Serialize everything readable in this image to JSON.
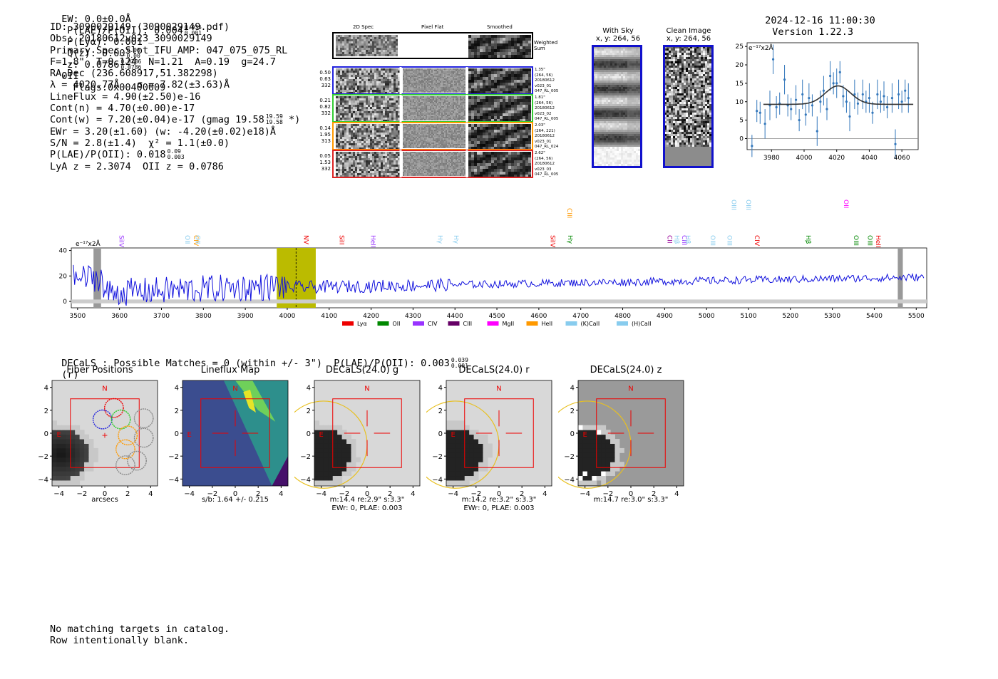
{
  "header": {
    "ew": "EW: 0.0±0.0Å",
    "plae_label": "P(LAE)/P(OII): 0.004",
    "plae_hi": "0.035",
    "plae_lo": "0.001",
    "plya": "P(Lyα): 0.001",
    "qz_label": "Q(z): 0.00",
    "qz_hi": "0.00",
    "qz_lo": "0.00",
    "z_label": "z: 0.0786",
    "z_hi": "0.0786",
    "z_lo": "0.0786",
    "z_line": "OII",
    "flags": "Flags:0x00400009",
    "timestamp": "2024-12-16 11:00:30",
    "version": "Version 1.22.3"
  },
  "info": {
    "id": "ID: 3090029149 (3090029149.pdf)",
    "obs": "Obs: 20180612v023_3090029149",
    "primary": "Primary Spec_Slot_IFU_AMP: 047_075_075_RL",
    "params": "F=1.8\"  T=0.124  N=1.21  A=0.19  g=24.7",
    "radec": "RA,Dec (236.608917,51.382298)",
    "lambda": "λ = 4020.77Å   σ = 7.82(±3.63)Å",
    "lineflux": "LineFlux = 4.90(±2.50)e-16",
    "contn": "Cont(n) = 4.70(±0.00)e-17",
    "contw": "Cont(w) = 7.20(±0.04)e-17 (gmag 19.58",
    "contw_hi": "19.59",
    "contw_lo": "19.58",
    "contw_end": " *)",
    "ewr": "EWr = 3.20(±1.60) (w: -4.20(±0.02)e18)Å",
    "sn": "S/N = 2.8(±1.4)  χ² = 1.1(±0.0)",
    "plae": "P(LAE)/P(OII): 0.018",
    "plae_hi": "0.09",
    "plae_lo": "0.003",
    "lya": "LyA z = 2.3074  OII z = 0.0786"
  },
  "cutouts": {
    "col_2d": "2D Spec",
    "col_flat": "Pixel Flat",
    "col_smooth": "Smoothed",
    "weighted": "Weighted Sum",
    "rows": [
      {
        "left": [
          "0.50",
          "0.63",
          "332"
        ],
        "right": [
          "1.35\"",
          "(264, 56)",
          "20180612",
          "v023_01",
          "047_RL_005"
        ],
        "color": "#2222dd"
      },
      {
        "left": [
          "0.21",
          "0.82",
          "332"
        ],
        "right": [
          "1.81\"",
          "(264, 56)",
          "20180612",
          "v023_02",
          "047_RL_005"
        ],
        "color": "#33cc33"
      },
      {
        "left": [
          "0.14",
          "1.95",
          "313"
        ],
        "right": [
          "2.03\"",
          "(264, 221)",
          "20180612",
          "v023_01",
          "047_RL_024"
        ],
        "color": "#ff9900"
      },
      {
        "left": [
          "0.05",
          "1.53",
          "332"
        ],
        "right": [
          "2.62\"",
          "(264, 56)",
          "20180612",
          "v023_03",
          "047_RL_005"
        ],
        "color": "#dd2222"
      }
    ]
  },
  "sky": {
    "with_sky_title": "With Sky",
    "with_sky_sub": "x, y: 264, 56",
    "clean_title": "Clean Image",
    "clean_sub": "x, y: 264, 56"
  },
  "zoom_plot": {
    "ylabel": "e⁻¹⁷x2Å",
    "xticks": [
      "3980",
      "4000",
      "4020",
      "4040",
      "4060"
    ],
    "yticks": [
      "25",
      "20",
      "15",
      "10",
      "5",
      "0"
    ]
  },
  "spectrum": {
    "ylabel": "e⁻¹⁷x2Å",
    "yticks": [
      "40",
      "20",
      "0"
    ],
    "xticks": [
      "3500",
      "3600",
      "3700",
      "3800",
      "3900",
      "4000",
      "4100",
      "4200",
      "4300",
      "4400",
      "4500",
      "4600",
      "4700",
      "4800",
      "4900",
      "5000",
      "5100",
      "5200",
      "5300",
      "5400",
      "5500"
    ],
    "lines": [
      {
        "label": "SiIV",
        "color": "#9933ff"
      },
      {
        "label": "OII",
        "color": "#88ccee"
      },
      {
        "label": "CIV",
        "color": "#ff9900"
      },
      {
        "label": "OII",
        "color": "#88ccee"
      },
      {
        "label": "NV",
        "color": "#ee0000"
      },
      {
        "label": "SiII",
        "color": "#ee0000"
      },
      {
        "label": "HeII",
        "color": "#9933ff"
      },
      {
        "label": "Hγ",
        "color": "#88ccee"
      },
      {
        "label": "Hγ",
        "color": "#88ccee"
      },
      {
        "label": "SiIV",
        "color": "#ee0000"
      },
      {
        "label": "CIII",
        "color": "#ff9900"
      },
      {
        "label": "Hγ",
        "color": "#008800"
      },
      {
        "label": "CII",
        "color": "#990099"
      },
      {
        "label": "Hβ",
        "color": "#88ccee"
      },
      {
        "label": "CIII",
        "color": "#9933ff"
      },
      {
        "label": "Hβ",
        "color": "#88ccee"
      },
      {
        "label": "OIII",
        "color": "#88ccee"
      },
      {
        "label": "OIII",
        "color": "#88ccee"
      },
      {
        "label": "OIII",
        "color": "#88ccee"
      },
      {
        "label": "OIII",
        "color": "#88ccee"
      },
      {
        "label": "CIV",
        "color": "#ee0000"
      },
      {
        "label": "Hβ",
        "color": "#008800"
      },
      {
        "label": "OII",
        "color": "#ff00ff"
      },
      {
        "label": "OIII",
        "color": "#008800"
      },
      {
        "label": "OIII",
        "color": "#008800"
      },
      {
        "label": "HeII",
        "color": "#ee0000"
      }
    ],
    "legend": [
      {
        "label": "Lyα",
        "color": "#ee0000"
      },
      {
        "label": "OII",
        "color": "#008800"
      },
      {
        "label": "CIV",
        "color": "#9933ff"
      },
      {
        "label": "CIII",
        "color": "#660066"
      },
      {
        "label": "MgII",
        "color": "#ff00ff"
      },
      {
        "label": "HeII",
        "color": "#ff9900"
      },
      {
        "label": "(K)CaII",
        "color": "#88ccee"
      },
      {
        "label": "(H)CaII",
        "color": "#88ccee"
      }
    ]
  },
  "decals": {
    "header": "DECaLS : Possible Matches = 0 (within +/- 3\")  P(LAE)/P(OII): 0.003",
    "header_hi": "0.039",
    "header_lo": "0.001",
    "header_end": "(r)",
    "panels": [
      {
        "title": "Fiber Positions",
        "caption1": "arcsecs",
        "caption2": ""
      },
      {
        "title": "Lineflux Map",
        "caption1": "s/b: 1.64 +/- 0.215",
        "caption2": ""
      },
      {
        "title": "DECaLS(24.0) g",
        "caption1": "m:14.4  re:2.9\"  s:3.3\"",
        "caption2": "EWr: 0, PLAE: 0.003"
      },
      {
        "title": "DECaLS(24.0) r",
        "caption1": "m:14.2  re:3.2\"  s:3.3\"",
        "caption2": "EWr: 0, PLAE: 0.003"
      },
      {
        "title": "DECaLS(24.0) z",
        "caption1": "m:14.7  re:3.0\"  s:3.3\"",
        "caption2": ""
      }
    ],
    "ticks": [
      "4",
      "2",
      "0",
      "−2",
      "−4"
    ],
    "xticks": [
      "−4",
      "−2",
      "0",
      "2",
      "4"
    ],
    "n_label": "N",
    "e_label": "E"
  },
  "footer": {
    "line1": "No matching targets in catalog.",
    "line2": "Row intentionally blank."
  }
}
